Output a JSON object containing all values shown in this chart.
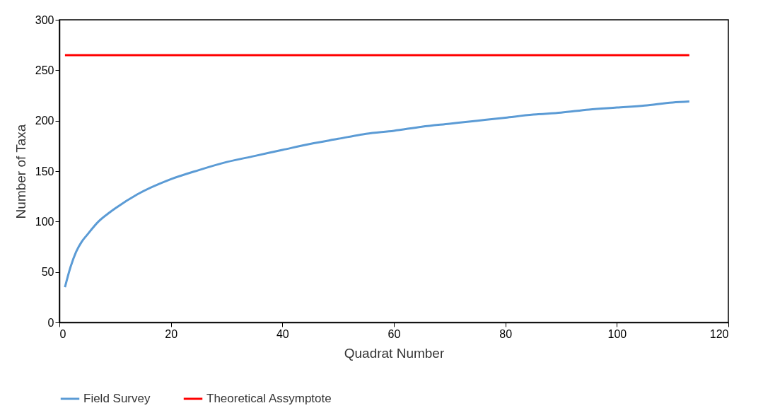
{
  "chart_data": {
    "type": "line",
    "xlabel": "Quadrat Number",
    "ylabel": "Number of Taxa",
    "xlim": [
      0,
      120
    ],
    "xticks": [
      0,
      20,
      40,
      60,
      80,
      100,
      120
    ],
    "ylim": [
      0,
      300
    ],
    "yticks": [
      0,
      50,
      100,
      150,
      200,
      250,
      300
    ],
    "grid": false,
    "legend": "bottom",
    "marker": "none",
    "line_style": "solid",
    "series": [
      {
        "name": "Field Survey",
        "color": "#5b9bd5",
        "x": [
          1,
          2,
          3,
          4,
          5,
          7,
          9,
          10,
          14,
          20,
          25,
          30,
          35,
          40,
          45,
          50,
          55,
          60,
          65,
          70,
          75,
          80,
          85,
          90,
          95,
          100,
          105,
          110,
          113
        ],
        "values": [
          35,
          55,
          70,
          80,
          87,
          100,
          109,
          113,
          127,
          142,
          151,
          159,
          165,
          171,
          177,
          182,
          187,
          190,
          194,
          197,
          200,
          203,
          206,
          208,
          211,
          213,
          215,
          218,
          219
        ]
      },
      {
        "name": "Theoretical Assymptote",
        "color": "#ff0000",
        "x": [
          1,
          113
        ],
        "values": [
          265,
          265
        ]
      }
    ]
  }
}
